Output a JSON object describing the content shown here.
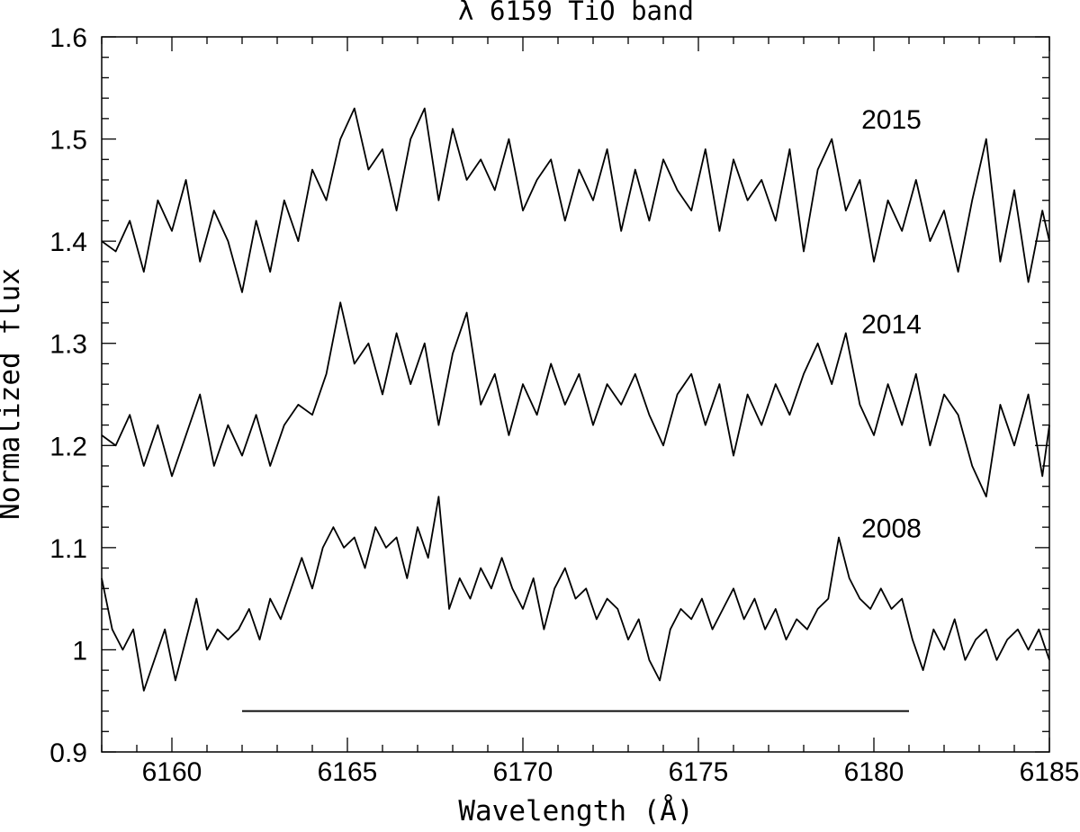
{
  "chart_data": {
    "type": "line",
    "title": "λ 6159 TiO band",
    "xlabel": "Wavelength (Å)",
    "ylabel": "Normalized flux",
    "xlim": [
      6158,
      6185
    ],
    "ylim": [
      0.9,
      1.6
    ],
    "x_ticks": [
      6160,
      6165,
      6170,
      6175,
      6180,
      6185
    ],
    "x_tick_labels": [
      "6160",
      "6165",
      "6170",
      "6175",
      "6180",
      "6185"
    ],
    "y_ticks": [
      0.9,
      1.0,
      1.1,
      1.2,
      1.3,
      1.4,
      1.5,
      1.6
    ],
    "y_tick_labels": [
      "0.9",
      "1",
      "1.1",
      "1.2",
      "1.3",
      "1.4",
      "1.5",
      "1.6"
    ],
    "grid": false,
    "legend": "none",
    "series": [
      {
        "label": "2015",
        "label_at": [
          6180.5,
          1.51
        ],
        "points": [
          [
            6158.0,
            1.4
          ],
          [
            6158.4,
            1.39
          ],
          [
            6158.8,
            1.42
          ],
          [
            6159.2,
            1.37
          ],
          [
            6159.6,
            1.44
          ],
          [
            6160.0,
            1.41
          ],
          [
            6160.4,
            1.46
          ],
          [
            6160.8,
            1.38
          ],
          [
            6161.2,
            1.43
          ],
          [
            6161.6,
            1.4
          ],
          [
            6162.0,
            1.35
          ],
          [
            6162.4,
            1.42
          ],
          [
            6162.8,
            1.37
          ],
          [
            6163.2,
            1.44
          ],
          [
            6163.6,
            1.4
          ],
          [
            6164.0,
            1.47
          ],
          [
            6164.4,
            1.44
          ],
          [
            6164.8,
            1.5
          ],
          [
            6165.2,
            1.53
          ],
          [
            6165.6,
            1.47
          ],
          [
            6166.0,
            1.49
          ],
          [
            6166.4,
            1.43
          ],
          [
            6166.8,
            1.5
          ],
          [
            6167.2,
            1.53
          ],
          [
            6167.6,
            1.44
          ],
          [
            6168.0,
            1.51
          ],
          [
            6168.4,
            1.46
          ],
          [
            6168.8,
            1.48
          ],
          [
            6169.2,
            1.45
          ],
          [
            6169.6,
            1.5
          ],
          [
            6170.0,
            1.43
          ],
          [
            6170.4,
            1.46
          ],
          [
            6170.8,
            1.48
          ],
          [
            6171.2,
            1.42
          ],
          [
            6171.6,
            1.47
          ],
          [
            6172.0,
            1.44
          ],
          [
            6172.4,
            1.49
          ],
          [
            6172.8,
            1.41
          ],
          [
            6173.2,
            1.47
          ],
          [
            6173.6,
            1.42
          ],
          [
            6174.0,
            1.48
          ],
          [
            6174.4,
            1.45
          ],
          [
            6174.8,
            1.43
          ],
          [
            6175.2,
            1.49
          ],
          [
            6175.6,
            1.41
          ],
          [
            6176.0,
            1.48
          ],
          [
            6176.4,
            1.44
          ],
          [
            6176.8,
            1.46
          ],
          [
            6177.2,
            1.42
          ],
          [
            6177.6,
            1.49
          ],
          [
            6178.0,
            1.39
          ],
          [
            6178.4,
            1.47
          ],
          [
            6178.8,
            1.5
          ],
          [
            6179.2,
            1.43
          ],
          [
            6179.6,
            1.46
          ],
          [
            6180.0,
            1.38
          ],
          [
            6180.4,
            1.44
          ],
          [
            6180.8,
            1.41
          ],
          [
            6181.2,
            1.46
          ],
          [
            6181.6,
            1.4
          ],
          [
            6182.0,
            1.43
          ],
          [
            6182.4,
            1.37
          ],
          [
            6182.8,
            1.44
          ],
          [
            6183.2,
            1.5
          ],
          [
            6183.6,
            1.38
          ],
          [
            6184.0,
            1.45
          ],
          [
            6184.4,
            1.36
          ],
          [
            6184.8,
            1.43
          ],
          [
            6185.0,
            1.4
          ]
        ]
      },
      {
        "label": "2014",
        "label_at": [
          6180.5,
          1.31
        ],
        "points": [
          [
            6158.0,
            1.21
          ],
          [
            6158.4,
            1.2
          ],
          [
            6158.8,
            1.23
          ],
          [
            6159.2,
            1.18
          ],
          [
            6159.6,
            1.22
          ],
          [
            6160.0,
            1.17
          ],
          [
            6160.4,
            1.21
          ],
          [
            6160.8,
            1.25
          ],
          [
            6161.2,
            1.18
          ],
          [
            6161.6,
            1.22
          ],
          [
            6162.0,
            1.19
          ],
          [
            6162.4,
            1.23
          ],
          [
            6162.8,
            1.18
          ],
          [
            6163.2,
            1.22
          ],
          [
            6163.6,
            1.24
          ],
          [
            6164.0,
            1.23
          ],
          [
            6164.4,
            1.27
          ],
          [
            6164.8,
            1.34
          ],
          [
            6165.2,
            1.28
          ],
          [
            6165.6,
            1.3
          ],
          [
            6166.0,
            1.25
          ],
          [
            6166.4,
            1.31
          ],
          [
            6166.8,
            1.26
          ],
          [
            6167.2,
            1.3
          ],
          [
            6167.6,
            1.22
          ],
          [
            6168.0,
            1.29
          ],
          [
            6168.4,
            1.33
          ],
          [
            6168.8,
            1.24
          ],
          [
            6169.2,
            1.27
          ],
          [
            6169.6,
            1.21
          ],
          [
            6170.0,
            1.26
          ],
          [
            6170.4,
            1.23
          ],
          [
            6170.8,
            1.28
          ],
          [
            6171.2,
            1.24
          ],
          [
            6171.6,
            1.27
          ],
          [
            6172.0,
            1.22
          ],
          [
            6172.4,
            1.26
          ],
          [
            6172.8,
            1.24
          ],
          [
            6173.2,
            1.27
          ],
          [
            6173.6,
            1.23
          ],
          [
            6174.0,
            1.2
          ],
          [
            6174.4,
            1.25
          ],
          [
            6174.8,
            1.27
          ],
          [
            6175.2,
            1.22
          ],
          [
            6175.6,
            1.26
          ],
          [
            6176.0,
            1.19
          ],
          [
            6176.4,
            1.25
          ],
          [
            6176.8,
            1.22
          ],
          [
            6177.2,
            1.26
          ],
          [
            6177.6,
            1.23
          ],
          [
            6178.0,
            1.27
          ],
          [
            6178.4,
            1.3
          ],
          [
            6178.8,
            1.26
          ],
          [
            6179.2,
            1.31
          ],
          [
            6179.6,
            1.24
          ],
          [
            6180.0,
            1.21
          ],
          [
            6180.4,
            1.26
          ],
          [
            6180.8,
            1.22
          ],
          [
            6181.2,
            1.27
          ],
          [
            6181.6,
            1.2
          ],
          [
            6182.0,
            1.25
          ],
          [
            6182.4,
            1.23
          ],
          [
            6182.8,
            1.18
          ],
          [
            6183.2,
            1.15
          ],
          [
            6183.6,
            1.24
          ],
          [
            6184.0,
            1.2
          ],
          [
            6184.4,
            1.25
          ],
          [
            6184.8,
            1.17
          ],
          [
            6185.0,
            1.22
          ]
        ]
      },
      {
        "label": "2008",
        "label_at": [
          6180.5,
          1.11
        ],
        "points": [
          [
            6158.0,
            1.07
          ],
          [
            6158.3,
            1.02
          ],
          [
            6158.6,
            1.0
          ],
          [
            6158.9,
            1.02
          ],
          [
            6159.2,
            0.96
          ],
          [
            6159.5,
            0.99
          ],
          [
            6159.8,
            1.02
          ],
          [
            6160.1,
            0.97
          ],
          [
            6160.4,
            1.01
          ],
          [
            6160.7,
            1.05
          ],
          [
            6161.0,
            1.0
          ],
          [
            6161.3,
            1.02
          ],
          [
            6161.6,
            1.01
          ],
          [
            6161.9,
            1.02
          ],
          [
            6162.2,
            1.04
          ],
          [
            6162.5,
            1.01
          ],
          [
            6162.8,
            1.05
          ],
          [
            6163.1,
            1.03
          ],
          [
            6163.4,
            1.06
          ],
          [
            6163.7,
            1.09
          ],
          [
            6164.0,
            1.06
          ],
          [
            6164.3,
            1.1
          ],
          [
            6164.6,
            1.12
          ],
          [
            6164.9,
            1.1
          ],
          [
            6165.2,
            1.11
          ],
          [
            6165.5,
            1.08
          ],
          [
            6165.8,
            1.12
          ],
          [
            6166.1,
            1.1
          ],
          [
            6166.4,
            1.11
          ],
          [
            6166.7,
            1.07
          ],
          [
            6167.0,
            1.12
          ],
          [
            6167.3,
            1.09
          ],
          [
            6167.6,
            1.15
          ],
          [
            6167.9,
            1.04
          ],
          [
            6168.2,
            1.07
          ],
          [
            6168.5,
            1.05
          ],
          [
            6168.8,
            1.08
          ],
          [
            6169.1,
            1.06
          ],
          [
            6169.4,
            1.09
          ],
          [
            6169.7,
            1.06
          ],
          [
            6170.0,
            1.04
          ],
          [
            6170.3,
            1.07
          ],
          [
            6170.6,
            1.02
          ],
          [
            6170.9,
            1.06
          ],
          [
            6171.2,
            1.08
          ],
          [
            6171.5,
            1.05
          ],
          [
            6171.8,
            1.06
          ],
          [
            6172.1,
            1.03
          ],
          [
            6172.4,
            1.05
          ],
          [
            6172.7,
            1.04
          ],
          [
            6173.0,
            1.01
          ],
          [
            6173.3,
            1.03
          ],
          [
            6173.6,
            0.99
          ],
          [
            6173.9,
            0.97
          ],
          [
            6174.2,
            1.02
          ],
          [
            6174.5,
            1.04
          ],
          [
            6174.8,
            1.03
          ],
          [
            6175.1,
            1.05
          ],
          [
            6175.4,
            1.02
          ],
          [
            6175.7,
            1.04
          ],
          [
            6176.0,
            1.06
          ],
          [
            6176.3,
            1.03
          ],
          [
            6176.6,
            1.05
          ],
          [
            6176.9,
            1.02
          ],
          [
            6177.2,
            1.04
          ],
          [
            6177.5,
            1.01
          ],
          [
            6177.8,
            1.03
          ],
          [
            6178.1,
            1.02
          ],
          [
            6178.4,
            1.04
          ],
          [
            6178.7,
            1.05
          ],
          [
            6179.0,
            1.11
          ],
          [
            6179.3,
            1.07
          ],
          [
            6179.6,
            1.05
          ],
          [
            6179.9,
            1.04
          ],
          [
            6180.2,
            1.06
          ],
          [
            6180.5,
            1.04
          ],
          [
            6180.8,
            1.05
          ],
          [
            6181.1,
            1.01
          ],
          [
            6181.4,
            0.98
          ],
          [
            6181.7,
            1.02
          ],
          [
            6182.0,
            1.0
          ],
          [
            6182.3,
            1.03
          ],
          [
            6182.6,
            0.99
          ],
          [
            6182.9,
            1.01
          ],
          [
            6183.2,
            1.02
          ],
          [
            6183.5,
            0.99
          ],
          [
            6183.8,
            1.01
          ],
          [
            6184.1,
            1.02
          ],
          [
            6184.4,
            1.0
          ],
          [
            6184.7,
            1.02
          ],
          [
            6185.0,
            0.99
          ]
        ]
      }
    ],
    "annotations": [
      {
        "type": "hline",
        "x_start": 6162.0,
        "x_end": 6181.0,
        "y": 0.94
      }
    ]
  }
}
